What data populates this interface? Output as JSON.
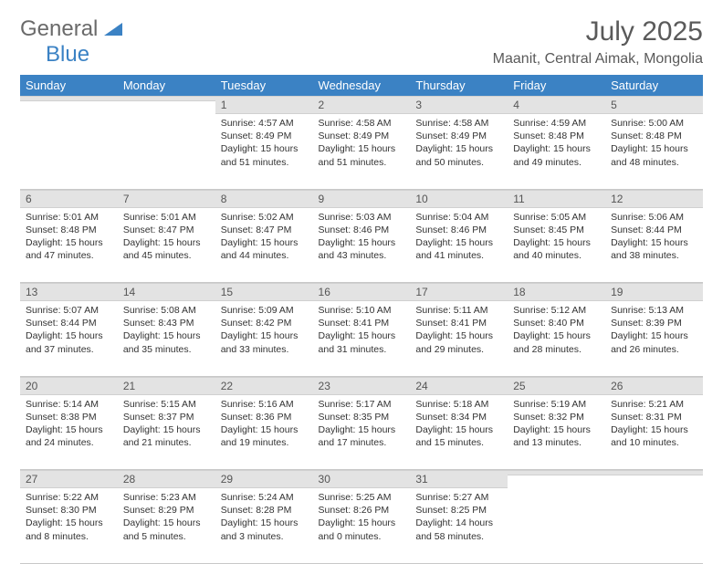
{
  "logo": {
    "word1": "General",
    "word2": "Blue"
  },
  "title": "July 2025",
  "location": "Maanit, Central Aimak, Mongolia",
  "colors": {
    "header_bg": "#3b82c4",
    "header_fg": "#ffffff",
    "daynum_bg": "#e3e3e3",
    "week_divider": "#3b6ea5",
    "text": "#333333",
    "logo_gray": "#6a6a6a",
    "logo_blue": "#3b82c4"
  },
  "day_names": [
    "Sunday",
    "Monday",
    "Tuesday",
    "Wednesday",
    "Thursday",
    "Friday",
    "Saturday"
  ],
  "weeks": [
    [
      {
        "num": "",
        "sunrise": "",
        "sunset": "",
        "daylight": ""
      },
      {
        "num": "",
        "sunrise": "",
        "sunset": "",
        "daylight": ""
      },
      {
        "num": "1",
        "sunrise": "Sunrise: 4:57 AM",
        "sunset": "Sunset: 8:49 PM",
        "daylight": "Daylight: 15 hours and 51 minutes."
      },
      {
        "num": "2",
        "sunrise": "Sunrise: 4:58 AM",
        "sunset": "Sunset: 8:49 PM",
        "daylight": "Daylight: 15 hours and 51 minutes."
      },
      {
        "num": "3",
        "sunrise": "Sunrise: 4:58 AM",
        "sunset": "Sunset: 8:49 PM",
        "daylight": "Daylight: 15 hours and 50 minutes."
      },
      {
        "num": "4",
        "sunrise": "Sunrise: 4:59 AM",
        "sunset": "Sunset: 8:48 PM",
        "daylight": "Daylight: 15 hours and 49 minutes."
      },
      {
        "num": "5",
        "sunrise": "Sunrise: 5:00 AM",
        "sunset": "Sunset: 8:48 PM",
        "daylight": "Daylight: 15 hours and 48 minutes."
      }
    ],
    [
      {
        "num": "6",
        "sunrise": "Sunrise: 5:01 AM",
        "sunset": "Sunset: 8:48 PM",
        "daylight": "Daylight: 15 hours and 47 minutes."
      },
      {
        "num": "7",
        "sunrise": "Sunrise: 5:01 AM",
        "sunset": "Sunset: 8:47 PM",
        "daylight": "Daylight: 15 hours and 45 minutes."
      },
      {
        "num": "8",
        "sunrise": "Sunrise: 5:02 AM",
        "sunset": "Sunset: 8:47 PM",
        "daylight": "Daylight: 15 hours and 44 minutes."
      },
      {
        "num": "9",
        "sunrise": "Sunrise: 5:03 AM",
        "sunset": "Sunset: 8:46 PM",
        "daylight": "Daylight: 15 hours and 43 minutes."
      },
      {
        "num": "10",
        "sunrise": "Sunrise: 5:04 AM",
        "sunset": "Sunset: 8:46 PM",
        "daylight": "Daylight: 15 hours and 41 minutes."
      },
      {
        "num": "11",
        "sunrise": "Sunrise: 5:05 AM",
        "sunset": "Sunset: 8:45 PM",
        "daylight": "Daylight: 15 hours and 40 minutes."
      },
      {
        "num": "12",
        "sunrise": "Sunrise: 5:06 AM",
        "sunset": "Sunset: 8:44 PM",
        "daylight": "Daylight: 15 hours and 38 minutes."
      }
    ],
    [
      {
        "num": "13",
        "sunrise": "Sunrise: 5:07 AM",
        "sunset": "Sunset: 8:44 PM",
        "daylight": "Daylight: 15 hours and 37 minutes."
      },
      {
        "num": "14",
        "sunrise": "Sunrise: 5:08 AM",
        "sunset": "Sunset: 8:43 PM",
        "daylight": "Daylight: 15 hours and 35 minutes."
      },
      {
        "num": "15",
        "sunrise": "Sunrise: 5:09 AM",
        "sunset": "Sunset: 8:42 PM",
        "daylight": "Daylight: 15 hours and 33 minutes."
      },
      {
        "num": "16",
        "sunrise": "Sunrise: 5:10 AM",
        "sunset": "Sunset: 8:41 PM",
        "daylight": "Daylight: 15 hours and 31 minutes."
      },
      {
        "num": "17",
        "sunrise": "Sunrise: 5:11 AM",
        "sunset": "Sunset: 8:41 PM",
        "daylight": "Daylight: 15 hours and 29 minutes."
      },
      {
        "num": "18",
        "sunrise": "Sunrise: 5:12 AM",
        "sunset": "Sunset: 8:40 PM",
        "daylight": "Daylight: 15 hours and 28 minutes."
      },
      {
        "num": "19",
        "sunrise": "Sunrise: 5:13 AM",
        "sunset": "Sunset: 8:39 PM",
        "daylight": "Daylight: 15 hours and 26 minutes."
      }
    ],
    [
      {
        "num": "20",
        "sunrise": "Sunrise: 5:14 AM",
        "sunset": "Sunset: 8:38 PM",
        "daylight": "Daylight: 15 hours and 24 minutes."
      },
      {
        "num": "21",
        "sunrise": "Sunrise: 5:15 AM",
        "sunset": "Sunset: 8:37 PM",
        "daylight": "Daylight: 15 hours and 21 minutes."
      },
      {
        "num": "22",
        "sunrise": "Sunrise: 5:16 AM",
        "sunset": "Sunset: 8:36 PM",
        "daylight": "Daylight: 15 hours and 19 minutes."
      },
      {
        "num": "23",
        "sunrise": "Sunrise: 5:17 AM",
        "sunset": "Sunset: 8:35 PM",
        "daylight": "Daylight: 15 hours and 17 minutes."
      },
      {
        "num": "24",
        "sunrise": "Sunrise: 5:18 AM",
        "sunset": "Sunset: 8:34 PM",
        "daylight": "Daylight: 15 hours and 15 minutes."
      },
      {
        "num": "25",
        "sunrise": "Sunrise: 5:19 AM",
        "sunset": "Sunset: 8:32 PM",
        "daylight": "Daylight: 15 hours and 13 minutes."
      },
      {
        "num": "26",
        "sunrise": "Sunrise: 5:21 AM",
        "sunset": "Sunset: 8:31 PM",
        "daylight": "Daylight: 15 hours and 10 minutes."
      }
    ],
    [
      {
        "num": "27",
        "sunrise": "Sunrise: 5:22 AM",
        "sunset": "Sunset: 8:30 PM",
        "daylight": "Daylight: 15 hours and 8 minutes."
      },
      {
        "num": "28",
        "sunrise": "Sunrise: 5:23 AM",
        "sunset": "Sunset: 8:29 PM",
        "daylight": "Daylight: 15 hours and 5 minutes."
      },
      {
        "num": "29",
        "sunrise": "Sunrise: 5:24 AM",
        "sunset": "Sunset: 8:28 PM",
        "daylight": "Daylight: 15 hours and 3 minutes."
      },
      {
        "num": "30",
        "sunrise": "Sunrise: 5:25 AM",
        "sunset": "Sunset: 8:26 PM",
        "daylight": "Daylight: 15 hours and 0 minutes."
      },
      {
        "num": "31",
        "sunrise": "Sunrise: 5:27 AM",
        "sunset": "Sunset: 8:25 PM",
        "daylight": "Daylight: 14 hours and 58 minutes."
      },
      {
        "num": "",
        "sunrise": "",
        "sunset": "",
        "daylight": ""
      },
      {
        "num": "",
        "sunrise": "",
        "sunset": "",
        "daylight": ""
      }
    ]
  ]
}
